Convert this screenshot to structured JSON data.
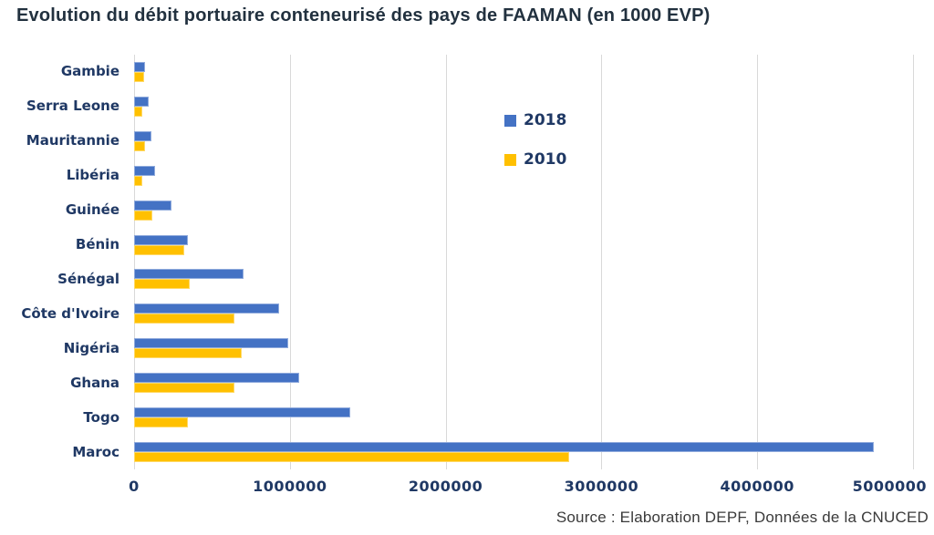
{
  "chart_data": {
    "type": "bar",
    "orientation": "horizontal",
    "title": "Evolution du débit portuaire conteneurisé des pays de FAAMAN (en 1000 EVP)",
    "source": "Source : Elaboration DEPF, Données de la CNUCED",
    "categories": [
      "Gambie",
      "Serra Leone",
      "Mauritannie",
      "Libéria",
      "Guinée",
      "Bénin",
      "Sénégal",
      "Côte d'Ivoire",
      "Nigéria",
      "Ghana",
      "Togo",
      "Maroc"
    ],
    "series": [
      {
        "name": "2018",
        "color": "#4472C4",
        "border_color": "#8FAADC",
        "values": [
          70000,
          95000,
          110000,
          135000,
          240000,
          345000,
          700000,
          930000,
          990000,
          1060000,
          1390000,
          4750000
        ]
      },
      {
        "name": "2010",
        "color": "#FFC000",
        "border_color": "#FFD966",
        "values": [
          65000,
          55000,
          70000,
          55000,
          115000,
          320000,
          355000,
          645000,
          690000,
          645000,
          345000,
          2790000
        ]
      }
    ],
    "x_axis": {
      "min": 0,
      "max": 5000000,
      "tick_step": 1000000,
      "tick_labels": [
        "0",
        "1000000",
        "2000000",
        "3000000",
        "4000000",
        "5000000"
      ]
    },
    "grid": "vertical-only",
    "legend_position": "center-top",
    "colors": {
      "title_text": "#22313F",
      "label_text": "#1F3864",
      "tick_text": "#1F3864",
      "legend_text": "#1F3864",
      "source_text": "#3A3A3A",
      "gridline": "#D9D9D9",
      "background": "#FFFFFF"
    }
  }
}
